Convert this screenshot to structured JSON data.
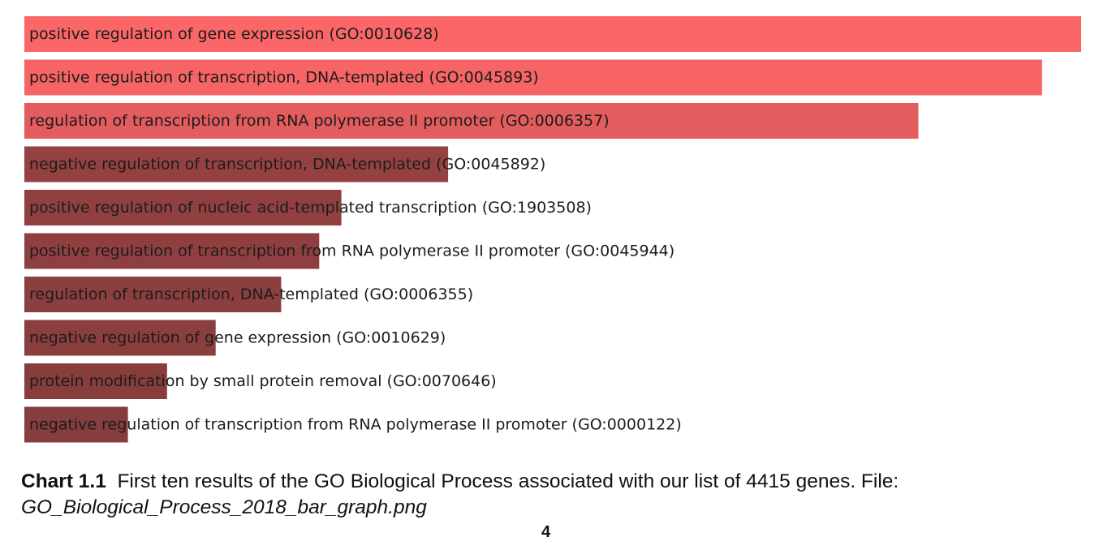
{
  "chart_data": {
    "type": "bar",
    "orientation": "horizontal",
    "categories": [
      "positive regulation of gene expression (GO:0010628)",
      "positive regulation of transcription, DNA-templated (GO:0045893)",
      "regulation of transcription from RNA polymerase II promoter (GO:0006357)",
      "negative regulation of transcription, DNA-templated (GO:0045892)",
      "positive regulation of nucleic acid-templated transcription (GO:1903508)",
      "positive regulation of transcription from RNA polymerase II promoter (GO:0045944)",
      "regulation of transcription, DNA-templated (GO:0006355)",
      "negative regulation of gene expression (GO:0010629)",
      "protein modification by small protein removal (GO:0070646)",
      "negative regulation of transcription from RNA polymerase II promoter (GO:0000122)"
    ],
    "values": [
      100,
      96.3,
      84.6,
      40.1,
      30.0,
      27.9,
      24.3,
      18.1,
      13.5,
      9.8
    ],
    "value_scale": "relative bar length (percent of the longest bar); no axis or values printed",
    "bar_colors": [
      "#fb6769",
      "#f66465",
      "#e35c5e",
      "#954141",
      "#914040",
      "#903f40",
      "#8c3f3f",
      "#8a3e3e",
      "#883d3d",
      "#863d3d"
    ],
    "title": "",
    "xlabel": "",
    "ylabel": "",
    "grid": false,
    "legend": "none"
  },
  "caption": {
    "label": "Chart 1.1",
    "text": "First ten results of the GO Biological Process associated with our list of 4415 genes. File:",
    "file": "GO_Biological_Process_2018_bar_graph.png"
  },
  "page_number": "4"
}
